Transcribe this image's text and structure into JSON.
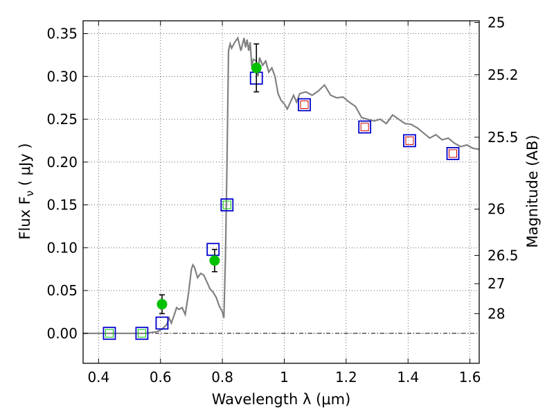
{
  "chart_data": {
    "type": "scatter",
    "xlabel": "Wavelength  λ (μm)",
    "ylabel": "Flux  F",
    "ylabel_sub": "ν",
    "ylabel_unit": "  ( μJy )",
    "y2label": "Magnitude (AB)",
    "xlim": [
      0.35,
      1.63
    ],
    "ylim": [
      -0.035,
      0.365
    ],
    "x_ticks": [
      0.4,
      0.6,
      0.8,
      1.0,
      1.2,
      1.4,
      1.6
    ],
    "x_tick_labels": [
      "0.4",
      "0.6",
      "0.8",
      "1",
      "1.2",
      "1.4",
      "1.6"
    ],
    "y_ticks": [
      0.0,
      0.05,
      0.1,
      0.15,
      0.2,
      0.25,
      0.3,
      0.35
    ],
    "y_tick_labels": [
      "0.00",
      "0.05",
      "0.10",
      "0.15",
      "0.20",
      "0.25",
      "0.30",
      "0.35"
    ],
    "y2_ticks": [
      {
        "label": "25",
        "flux": 0.363
      },
      {
        "label": "25.2",
        "flux": 0.302
      },
      {
        "label": "25.5",
        "flux": 0.229
      },
      {
        "label": "26",
        "flux": 0.145
      },
      {
        "label": "26.5",
        "flux": 0.091
      },
      {
        "label": "27",
        "flux": 0.058
      },
      {
        "label": "28",
        "flux": 0.023
      }
    ],
    "grid": true,
    "colors": {
      "model": "#808080",
      "observed": "#00c000",
      "model_box": "#0000cc",
      "model_box_inner_red": "#cc0000",
      "model_box_inner_green": "#00cc00",
      "errorbar": "#000000",
      "zero_line": "#000000"
    },
    "series": [
      {
        "kind": "spectrum",
        "x": [
          0.35,
          0.55,
          0.59,
          0.605,
          0.62,
          0.628,
          0.635,
          0.645,
          0.652,
          0.66,
          0.67,
          0.68,
          0.69,
          0.7,
          0.705,
          0.71,
          0.72,
          0.73,
          0.74,
          0.75,
          0.76,
          0.77,
          0.78,
          0.79,
          0.8,
          0.805,
          0.81,
          0.815,
          0.82,
          0.825,
          0.83,
          0.84,
          0.85,
          0.86,
          0.87,
          0.875,
          0.88,
          0.885,
          0.89,
          0.895,
          0.9,
          0.91,
          0.915,
          0.92,
          0.93,
          0.94,
          0.95,
          0.96,
          0.97,
          0.98,
          0.99,
          1.0,
          1.01,
          1.02,
          1.03,
          1.04,
          1.05,
          1.07,
          1.09,
          1.11,
          1.13,
          1.15,
          1.17,
          1.19,
          1.21,
          1.23,
          1.25,
          1.27,
          1.29,
          1.31,
          1.33,
          1.35,
          1.37,
          1.39,
          1.41,
          1.43,
          1.45,
          1.47,
          1.49,
          1.51,
          1.53,
          1.55,
          1.57,
          1.59,
          1.61,
          1.63
        ],
        "y": [
          0.0,
          0.0,
          0.002,
          0.005,
          0.01,
          0.018,
          0.012,
          0.022,
          0.03,
          0.028,
          0.03,
          0.022,
          0.045,
          0.075,
          0.08,
          0.077,
          0.065,
          0.07,
          0.068,
          0.06,
          0.052,
          0.048,
          0.042,
          0.032,
          0.025,
          0.018,
          0.09,
          0.2,
          0.33,
          0.338,
          0.333,
          0.34,
          0.345,
          0.33,
          0.345,
          0.334,
          0.343,
          0.33,
          0.34,
          0.312,
          0.32,
          0.318,
          0.3,
          0.322,
          0.313,
          0.318,
          0.305,
          0.31,
          0.3,
          0.28,
          0.272,
          0.268,
          0.262,
          0.27,
          0.278,
          0.27,
          0.28,
          0.282,
          0.278,
          0.283,
          0.29,
          0.278,
          0.275,
          0.276,
          0.27,
          0.265,
          0.252,
          0.25,
          0.248,
          0.25,
          0.245,
          0.255,
          0.25,
          0.245,
          0.244,
          0.24,
          0.234,
          0.228,
          0.232,
          0.226,
          0.228,
          0.222,
          0.218,
          0.22,
          0.216,
          0.215
        ]
      },
      {
        "kind": "model_boxes",
        "points": [
          {
            "x": 0.435,
            "y": 0.0,
            "inner": "green"
          },
          {
            "x": 0.54,
            "y": 0.0,
            "inner": "green"
          },
          {
            "x": 0.605,
            "y": 0.012,
            "inner": "none"
          },
          {
            "x": 0.77,
            "y": 0.098,
            "inner": "none"
          },
          {
            "x": 0.815,
            "y": 0.15,
            "inner": "green"
          },
          {
            "x": 0.91,
            "y": 0.298,
            "inner": "none"
          },
          {
            "x": 1.065,
            "y": 0.267,
            "inner": "red"
          },
          {
            "x": 1.26,
            "y": 0.241,
            "inner": "red"
          },
          {
            "x": 1.405,
            "y": 0.225,
            "inner": "red"
          },
          {
            "x": 1.545,
            "y": 0.21,
            "inner": "red"
          }
        ]
      },
      {
        "kind": "observed",
        "points": [
          {
            "x": 0.605,
            "y": 0.034,
            "err": 0.011
          },
          {
            "x": 0.775,
            "y": 0.085,
            "err": 0.013
          },
          {
            "x": 0.91,
            "y": 0.31,
            "err": 0.028
          }
        ]
      }
    ]
  }
}
